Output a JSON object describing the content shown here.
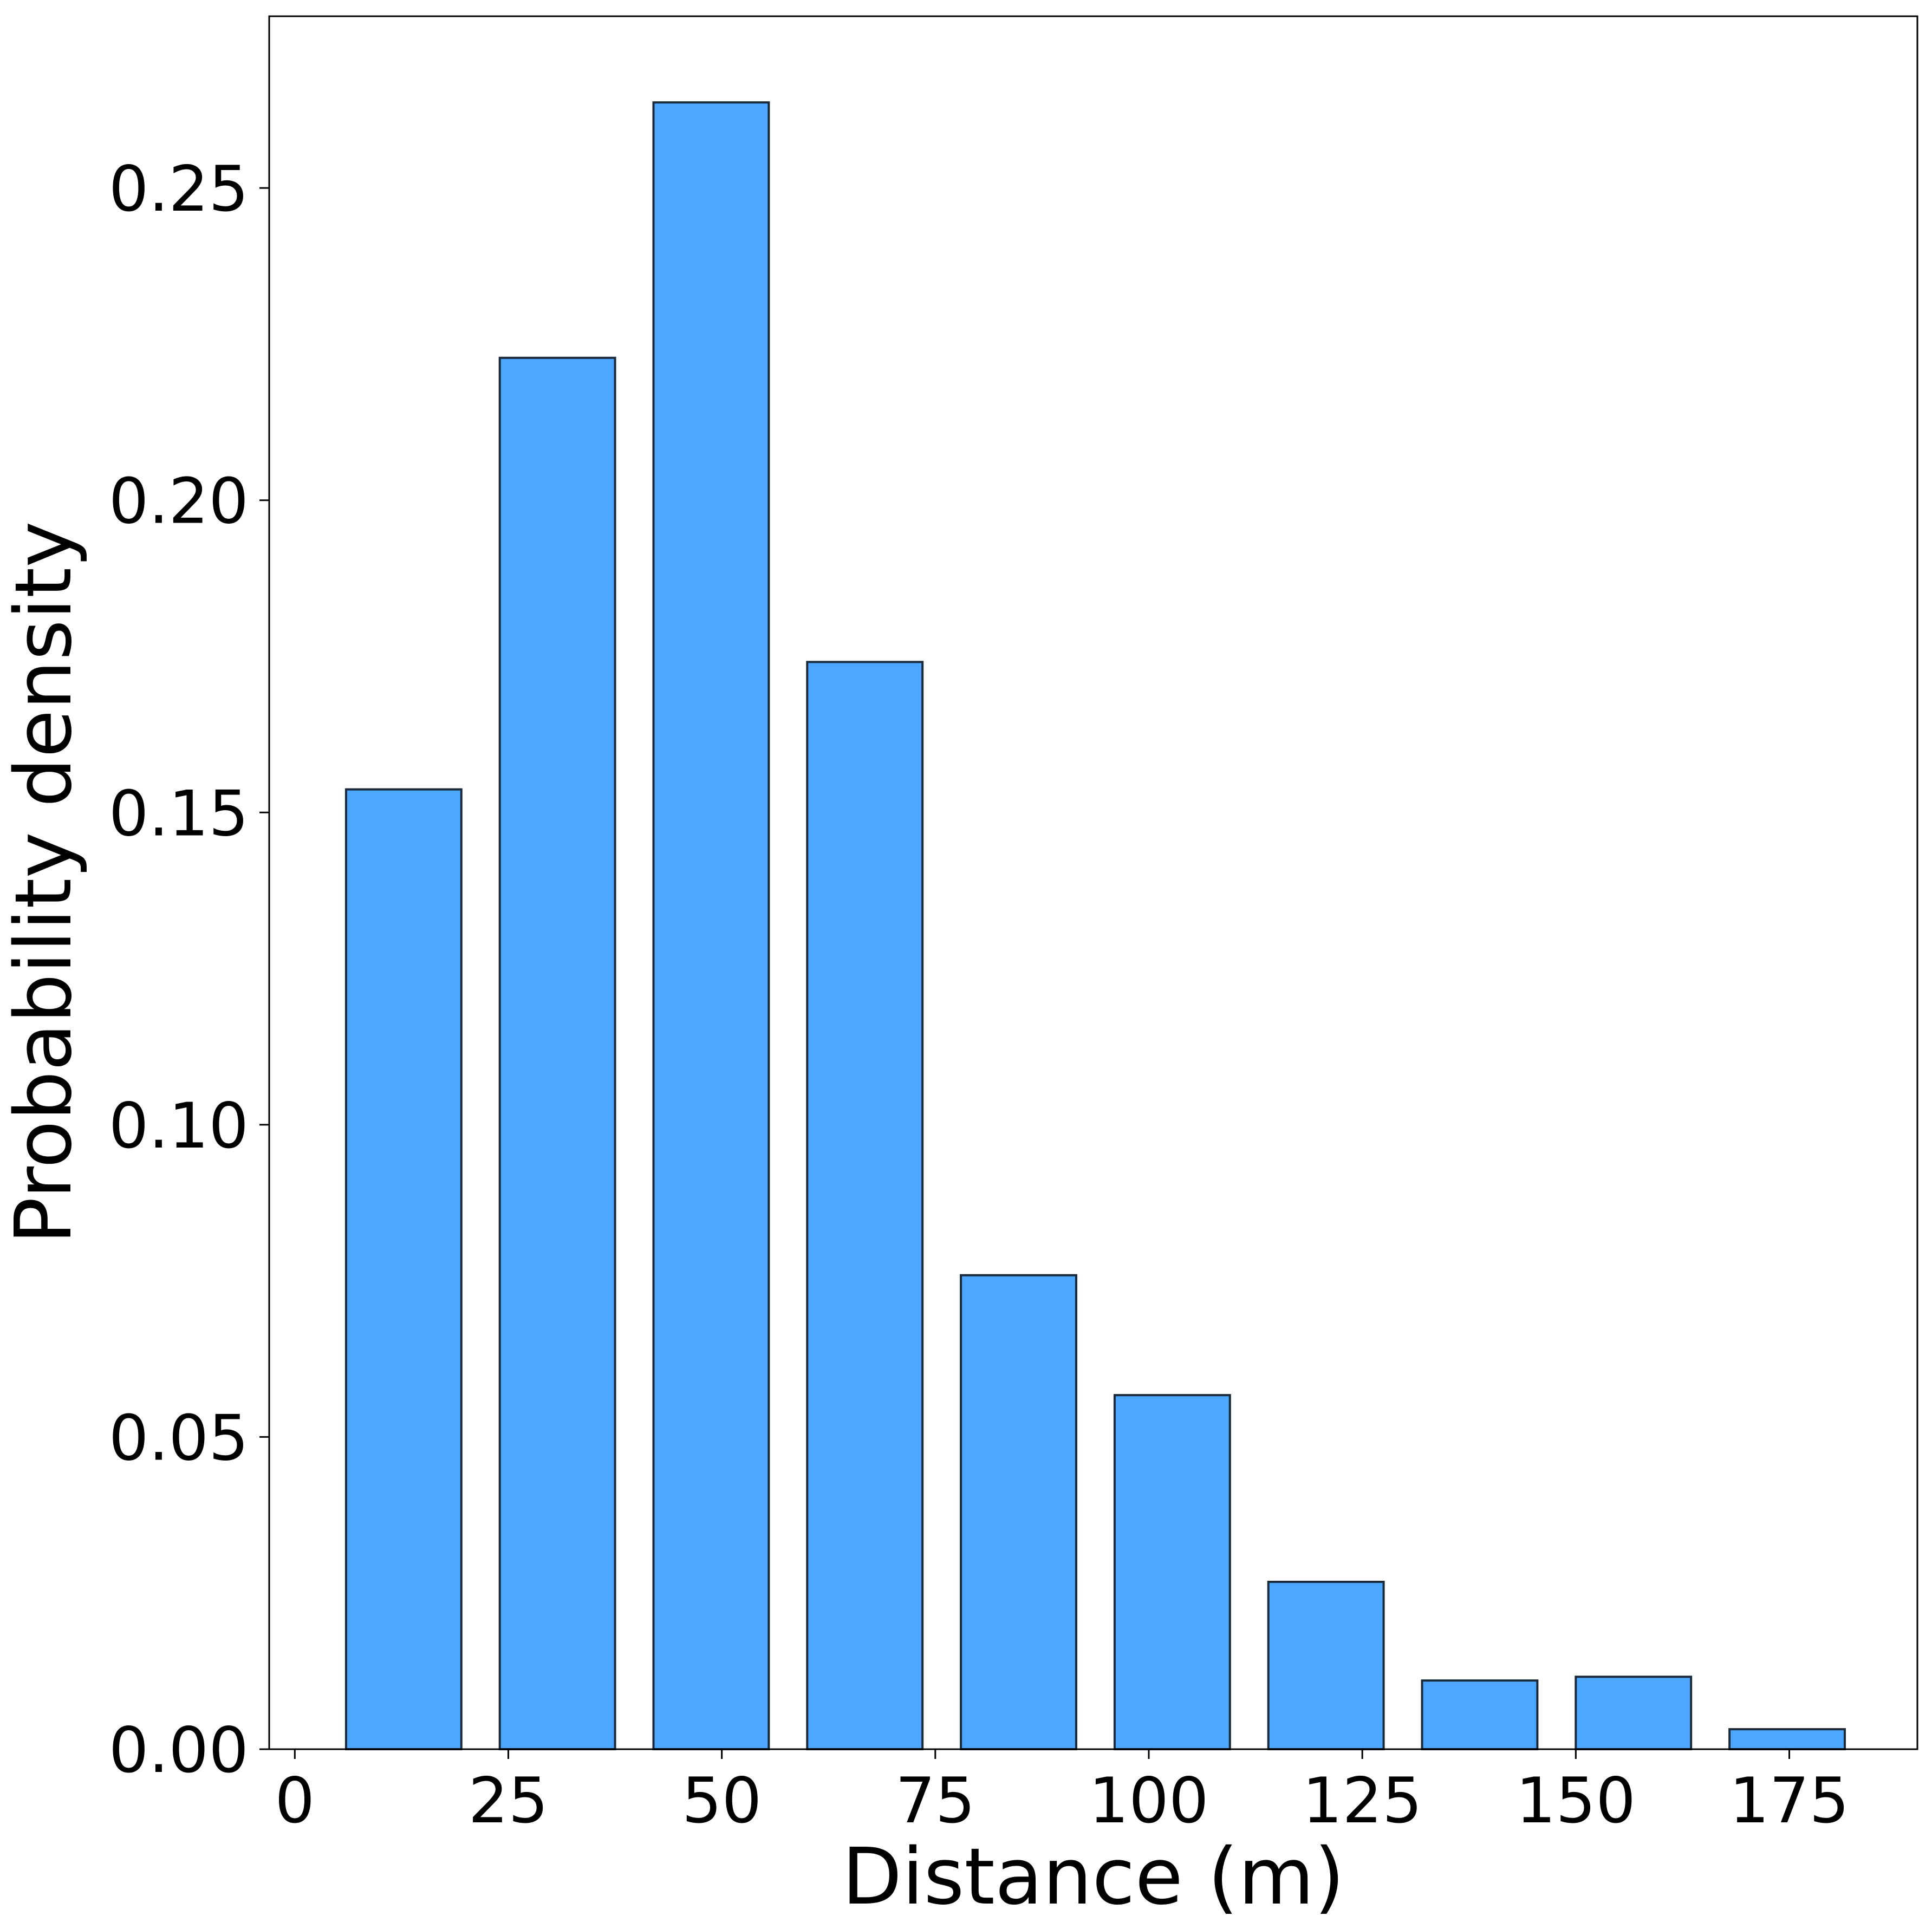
{
  "chart_data": {
    "type": "bar",
    "title": "",
    "xlabel": "Distance (m)",
    "ylabel": "Probability density",
    "xlim": [
      -3,
      190
    ],
    "ylim": [
      0,
      0.2775
    ],
    "xticks": [
      0,
      25,
      50,
      75,
      100,
      125,
      150,
      175
    ],
    "xtick_labels": [
      "0",
      "25",
      "50",
      "75",
      "100",
      "125",
      "150",
      "175"
    ],
    "yticks": [
      0.0,
      0.05,
      0.1,
      0.15,
      0.2,
      0.25
    ],
    "ytick_labels": [
      "0.00",
      "0.05",
      "0.10",
      "0.15",
      "0.20",
      "0.25"
    ],
    "bar_width": 13.5,
    "bins": [
      {
        "center": 12.75,
        "value": 0.1537
      },
      {
        "center": 30.75,
        "value": 0.2228
      },
      {
        "center": 48.75,
        "value": 0.2637
      },
      {
        "center": 66.75,
        "value": 0.1741
      },
      {
        "center": 84.75,
        "value": 0.0759
      },
      {
        "center": 102.75,
        "value": 0.0567
      },
      {
        "center": 120.75,
        "value": 0.0268
      },
      {
        "center": 138.75,
        "value": 0.011
      },
      {
        "center": 156.75,
        "value": 0.0116
      },
      {
        "center": 174.75,
        "value": 0.0032
      }
    ],
    "grid": false,
    "legend": false,
    "colors": {
      "bar_fill": "#4da6ff",
      "bar_edge": "#1a2a3a",
      "axis": "#000000"
    }
  }
}
